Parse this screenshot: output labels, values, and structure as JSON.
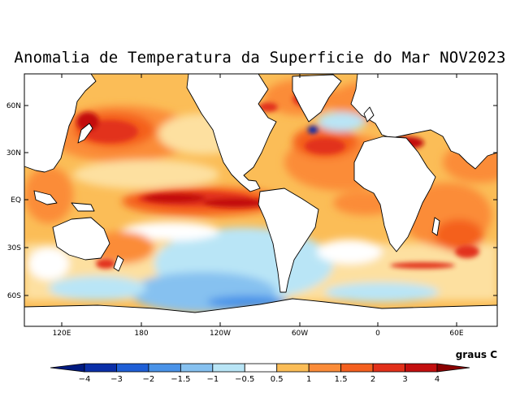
{
  "title": "Anomalia de Temperatura da Superficie do Mar NOV2023",
  "lat_labels": [
    "60N",
    "30N",
    "EQ",
    "30S",
    "60S"
  ],
  "lon_labels": [
    "120E",
    "180",
    "120W",
    "60W",
    "0",
    "60E"
  ],
  "colorbar": {
    "unit_label": "graus C",
    "tick_labels": [
      "-4",
      "-3",
      "-2",
      "-1.5",
      "-1",
      "-0.5",
      "0.5",
      "1",
      "1.5",
      "2",
      "3",
      "4"
    ],
    "colors": [
      "#0b2fa8",
      "#1f5fd6",
      "#4a93e8",
      "#86c1f0",
      "#b9e5f6",
      "#ffffff",
      "#fbbd57",
      "#fb8c39",
      "#f4601f",
      "#e2301a",
      "#c30f0f"
    ],
    "under_color": "#001a80",
    "over_color": "#8a0000"
  },
  "colors": {
    "land": "#ffffff",
    "coast": "#000000",
    "frame": "#000000"
  }
}
